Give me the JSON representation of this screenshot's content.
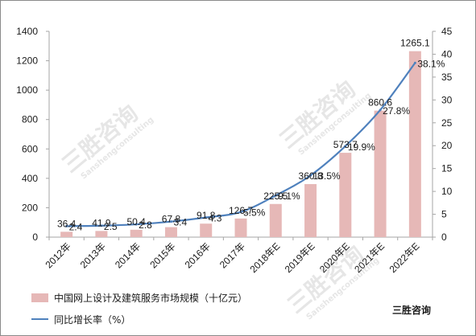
{
  "chart_data": {
    "type": "bar+line",
    "categories": [
      "2012年",
      "2013年",
      "2014年",
      "2015年",
      "2016年",
      "2017年",
      "2018年E",
      "2019年E",
      "2020年E",
      "2021年E",
      "2022年E"
    ],
    "series": [
      {
        "name": "中国网上设计及建筑服务市场规模（十亿元）",
        "type": "bar",
        "axis": "left",
        "color": "#e6b8b7",
        "values": [
          36.4,
          41.9,
          50.4,
          67.8,
          91.8,
          126.7,
          225.5,
          360.8,
          573.7,
          860.6,
          1265.1
        ],
        "labels": [
          "36.4",
          "41.9",
          "50.4",
          "67.8",
          "91.8",
          "126.7",
          "225.5",
          "360.8",
          "573.7",
          "860.6",
          "1265.1"
        ]
      },
      {
        "name": "同比增长率（%）",
        "type": "line",
        "axis": "right",
        "color": "#4f81bd",
        "values": [
          2.4,
          2.5,
          2.8,
          3.4,
          4.3,
          5.5,
          9.1,
          13.5,
          19.9,
          27.8,
          38.1
        ],
        "labels": [
          "2.4",
          "2.5",
          "2.8",
          "3.4",
          "4.3",
          "5.5%",
          "9.1%",
          "13.5%",
          "19.9%",
          "27.8%",
          "38.1%"
        ]
      }
    ],
    "y_left": {
      "min": 0,
      "max": 1400,
      "ticks": [
        "0",
        "200",
        "400",
        "600",
        "800",
        "1000",
        "1200",
        "1400"
      ]
    },
    "y_right": {
      "min": 0,
      "max": 45,
      "ticks": [
        "0",
        "5",
        "10",
        "15",
        "20",
        "25",
        "30",
        "35",
        "40",
        "45"
      ]
    },
    "grid": false,
    "legend_position": "bottom-left"
  },
  "brand": "三胜咨询",
  "watermark": {
    "cn": "三胜咨询",
    "en": "Sanshengconsulting"
  }
}
